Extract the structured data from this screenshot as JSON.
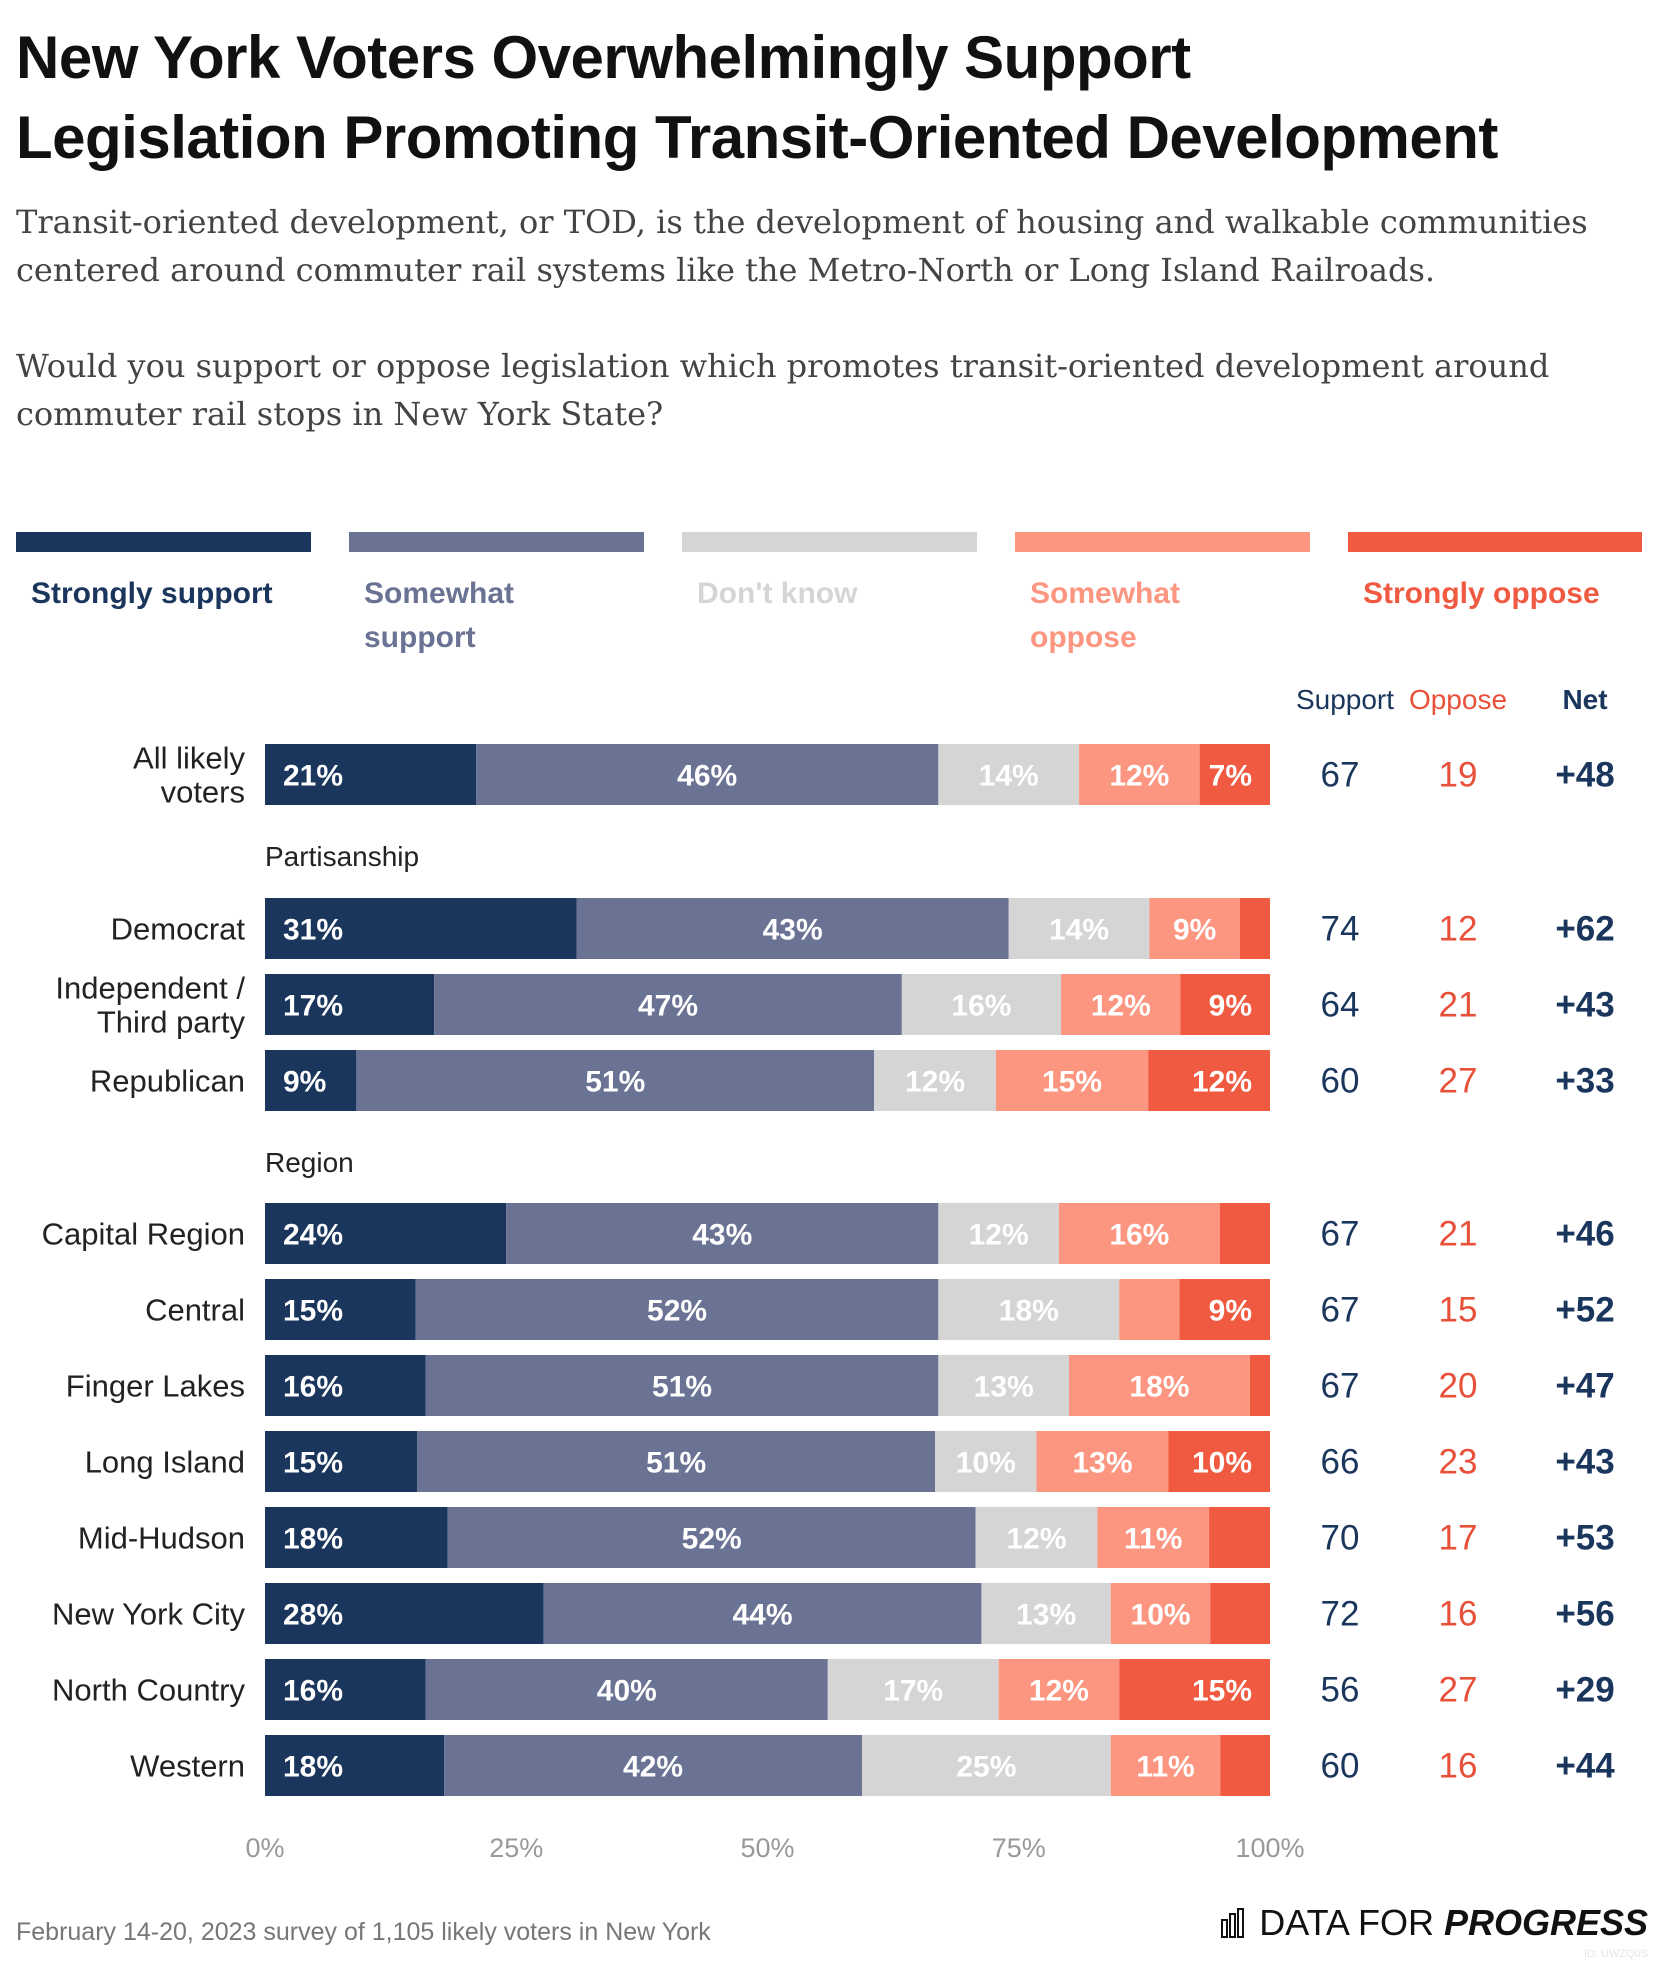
{
  "title_line1": "New York Voters Overwhelmingly Support",
  "title_line2": "Legislation Promoting Transit-Oriented Development",
  "subtitle_p1": "Transit-oriented development, or TOD, is the development of housing and walkable communities centered around commuter rail systems like the Metro-North or Long Island Railroads.",
  "subtitle_p2": "Would you support or oppose legislation which promotes transit-oriented development around commuter rail stops in New York State?",
  "colors": {
    "strongly_support": "#1b365d",
    "somewhat_support": "#6b7394",
    "dont_know": "#d5d5d5",
    "somewhat_oppose": "#fc9680",
    "strongly_oppose": "#f05a40",
    "support_text": "#1b365d",
    "oppose_text": "#e8503a"
  },
  "legend": [
    {
      "label": "Strongly support",
      "color": "#1b365d"
    },
    {
      "label": "Somewhat support",
      "color": "#6b7394"
    },
    {
      "label": "Don't know",
      "color": "#d5d5d5"
    },
    {
      "label": "Somewhat oppose",
      "color": "#fc9680"
    },
    {
      "label": "Strongly oppose",
      "color": "#f05a40"
    }
  ],
  "column_headers": {
    "support": "Support",
    "oppose": "Oppose",
    "net": "Net"
  },
  "chart_data": {
    "type": "bar",
    "orientation": "horizontal",
    "stacked": true,
    "xlim": [
      0,
      100
    ],
    "x_ticks": [
      "0%",
      "25%",
      "50%",
      "75%",
      "100%"
    ],
    "series_names": [
      "Strongly support",
      "Somewhat support",
      "Don't know",
      "Somewhat oppose",
      "Strongly oppose"
    ],
    "groups": [
      {
        "name": "",
        "rows": [
          {
            "label": "All likely voters",
            "values": [
              21,
              46,
              14,
              12,
              7
            ],
            "value_labels": [
              "21%",
              "46%",
              "14%",
              "12%",
              "7%"
            ],
            "support": "67",
            "oppose": "19",
            "net": "+48"
          }
        ]
      },
      {
        "name": "Partisanship",
        "rows": [
          {
            "label": "Democrat",
            "values": [
              31,
              43,
              14,
              9,
              3
            ],
            "value_labels": [
              "31%",
              "43%",
              "14%",
              "9%",
              ""
            ],
            "support": "74",
            "oppose": "12",
            "net": "+62"
          },
          {
            "label": "Independent / Third party",
            "values": [
              17,
              47,
              16,
              12,
              9
            ],
            "value_labels": [
              "17%",
              "47%",
              "16%",
              "12%",
              "9%"
            ],
            "support": "64",
            "oppose": "21",
            "net": "+43"
          },
          {
            "label": "Republican",
            "values": [
              9,
              51,
              12,
              15,
              12
            ],
            "value_labels": [
              "9%",
              "51%",
              "12%",
              "15%",
              "12%"
            ],
            "support": "60",
            "oppose": "27",
            "net": "+33"
          }
        ]
      },
      {
        "name": "Region",
        "rows": [
          {
            "label": "Capital Region",
            "values": [
              24,
              43,
              12,
              16,
              5
            ],
            "value_labels": [
              "24%",
              "43%",
              "12%",
              "16%",
              ""
            ],
            "support": "67",
            "oppose": "21",
            "net": "+46"
          },
          {
            "label": "Central",
            "values": [
              15,
              52,
              18,
              6,
              9
            ],
            "value_labels": [
              "15%",
              "52%",
              "18%",
              "",
              "9%"
            ],
            "support": "67",
            "oppose": "15",
            "net": "+52"
          },
          {
            "label": "Finger Lakes",
            "values": [
              16,
              51,
              13,
              18,
              2
            ],
            "value_labels": [
              "16%",
              "51%",
              "13%",
              "18%",
              ""
            ],
            "support": "67",
            "oppose": "20",
            "net": "+47"
          },
          {
            "label": "Long Island",
            "values": [
              15,
              51,
              10,
              13,
              10
            ],
            "value_labels": [
              "15%",
              "51%",
              "10%",
              "13%",
              "10%"
            ],
            "support": "66",
            "oppose": "23",
            "net": "+43"
          },
          {
            "label": "Mid-Hudson",
            "values": [
              18,
              52,
              12,
              11,
              6
            ],
            "value_labels": [
              "18%",
              "52%",
              "12%",
              "11%",
              ""
            ],
            "support": "70",
            "oppose": "17",
            "net": "+53"
          },
          {
            "label": "New York City",
            "values": [
              28,
              44,
              13,
              10,
              6
            ],
            "value_labels": [
              "28%",
              "44%",
              "13%",
              "10%",
              ""
            ],
            "support": "72",
            "oppose": "16",
            "net": "+56"
          },
          {
            "label": "North Country",
            "values": [
              16,
              40,
              17,
              12,
              15
            ],
            "value_labels": [
              "16%",
              "40%",
              "17%",
              "12%",
              "15%"
            ],
            "support": "56",
            "oppose": "27",
            "net": "+29"
          },
          {
            "label": "Western",
            "values": [
              18,
              42,
              25,
              11,
              5
            ],
            "value_labels": [
              "18%",
              "42%",
              "25%",
              "11%",
              ""
            ],
            "support": "60",
            "oppose": "16",
            "net": "+44"
          }
        ]
      }
    ]
  },
  "footer": "February 14-20, 2023 survey of 1,105 likely voters in New York",
  "brand_regular": "DATA FOR",
  "brand_bold": "PROGRESS",
  "brand_icon": "bar-chart-icon",
  "chart_id": "ID: UWZQ0S"
}
